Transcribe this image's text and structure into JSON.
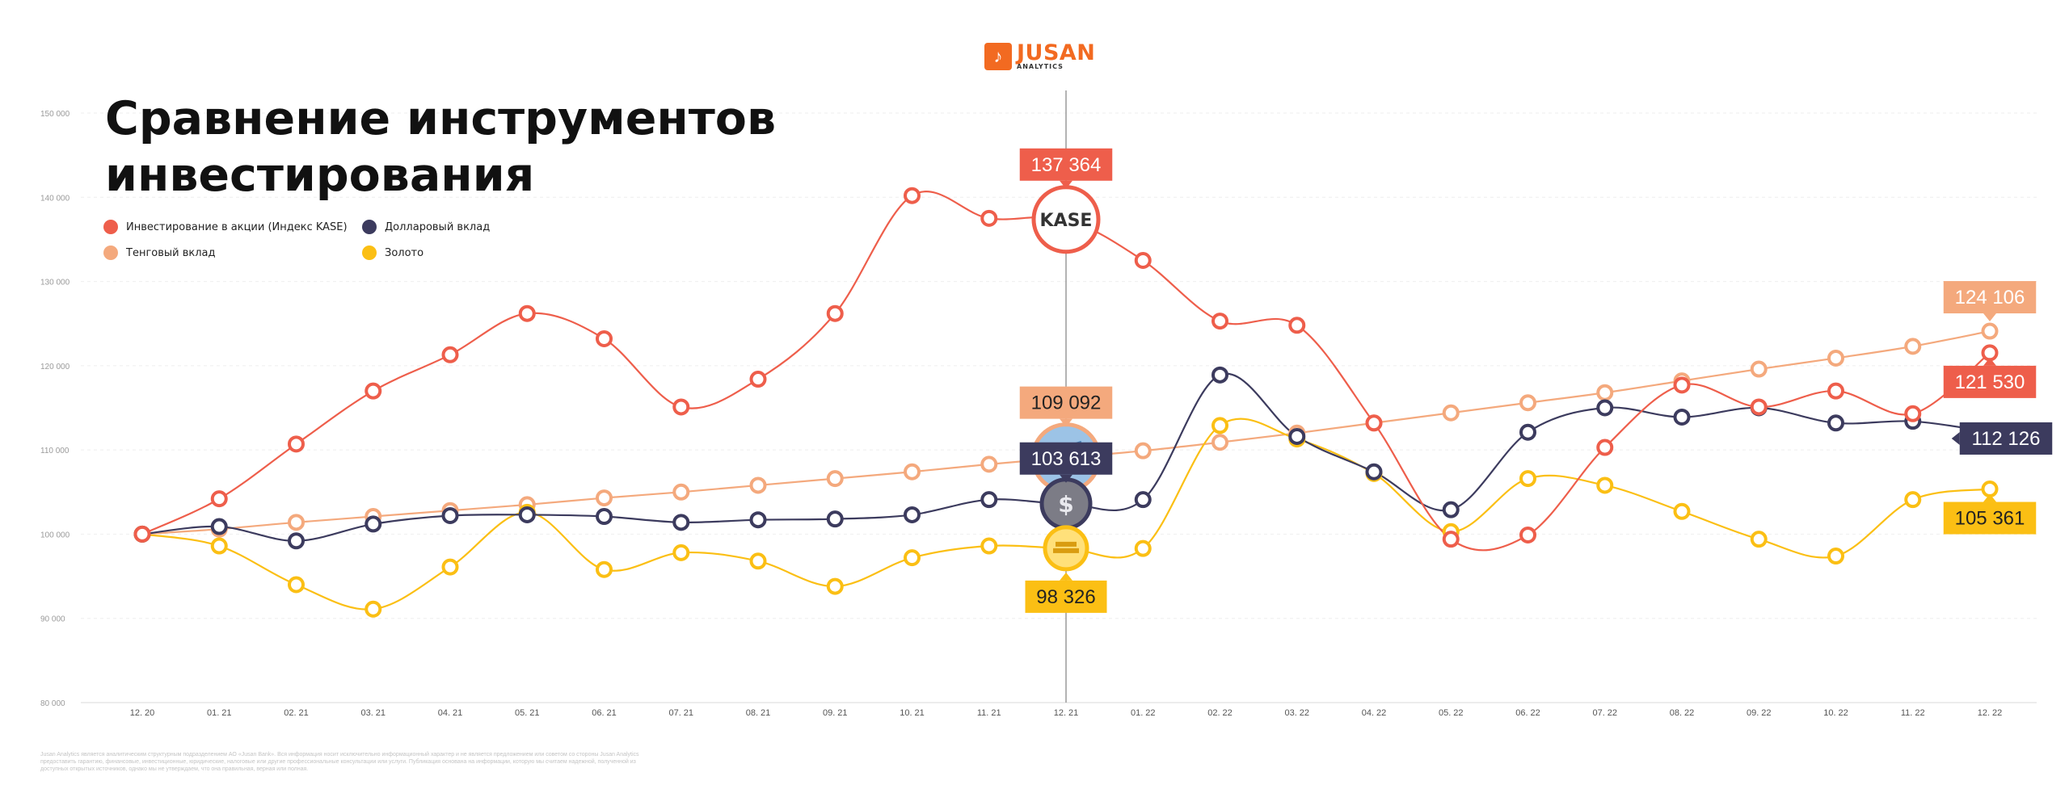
{
  "brand": {
    "name": "JUSAN",
    "sub": "ANALYTICS",
    "color": "#f26a21"
  },
  "title": "Сравнение инструментов\nинвестирования",
  "footnote": "Jusan Analytics является аналитическим структурным подразделением АО «Jusan Bank». Вся информация носит исключительно информационный характер и не является предложением или советом со стороны Jusan Analytics предоставить гарантию, финансовые, инвестиционные, юридические, налоговые или другие профессиональные консультации или услуги. Публикация основана на информации, которую мы считаем надежной, полученной из доступных открытых источников, однако мы не утверждаем, что она правильная, верная или полная.",
  "legend": [
    {
      "label": "Инвестирование в акции (Индекс KASE)",
      "color": "#ee5e4b",
      "series": "kase"
    },
    {
      "label": "Долларовый вклад",
      "color": "#3c3b5e",
      "series": "usd"
    },
    {
      "label": "Тенговый вклад",
      "color": "#f4a97d",
      "series": "kzt"
    },
    {
      "label": "Золото",
      "color": "#fbbf14",
      "series": "gold"
    }
  ],
  "chart_data": {
    "type": "line",
    "categories": [
      "12. 20",
      "01. 21",
      "02. 21",
      "03. 21",
      "04. 21",
      "05. 21",
      "06. 21",
      "07. 21",
      "08. 21",
      "09. 21",
      "10. 21",
      "11. 21",
      "12. 21",
      "01. 22",
      "02. 22",
      "03. 22",
      "04. 22",
      "05. 22",
      "06. 22",
      "07. 22",
      "08. 22",
      "09. 22",
      "10. 22",
      "11. 22",
      "12. 22"
    ],
    "ylim": [
      80000,
      150000
    ],
    "yticks": [
      "80 000",
      "90 000",
      "100 000",
      "110 000",
      "120 000",
      "130 000",
      "140 000",
      "150 000"
    ],
    "grid": true,
    "legend_position": "top-left",
    "highlight_category": "12. 21",
    "series": [
      {
        "id": "kase",
        "color": "#ee5e4b",
        "values": [
          100000,
          104200,
          110700,
          117000,
          121300,
          126200,
          123200,
          115100,
          118400,
          126200,
          140200,
          137500,
          137364,
          132500,
          125300,
          124800,
          113200,
          99400,
          99900,
          110300,
          117700,
          115100,
          117000,
          114300,
          121530
        ]
      },
      {
        "id": "kzt",
        "color": "#f4a97d",
        "values": [
          100000,
          100600,
          101400,
          102100,
          102800,
          103500,
          104300,
          105000,
          105800,
          106600,
          107400,
          108300,
          109092,
          109900,
          110900,
          112000,
          113200,
          114400,
          115600,
          116800,
          118200,
          119600,
          120900,
          122300,
          124106
        ]
      },
      {
        "id": "usd",
        "color": "#3c3b5e",
        "values": [
          100000,
          100900,
          99200,
          101200,
          102200,
          102300,
          102100,
          101400,
          101700,
          101800,
          102300,
          104100,
          103613,
          104100,
          118900,
          111600,
          107400,
          102900,
          112100,
          115000,
          113900,
          115000,
          113200,
          113400,
          112126
        ]
      },
      {
        "id": "gold",
        "color": "#fbbf14",
        "values": [
          100000,
          98600,
          94000,
          91100,
          96100,
          102600,
          95800,
          97800,
          96800,
          93800,
          97200,
          98600,
          98326,
          98300,
          112900,
          111300,
          107200,
          100300,
          106600,
          105800,
          102700,
          99400,
          97400,
          104100,
          105361
        ]
      }
    ],
    "callouts": [
      {
        "series": "kase",
        "label": "137 364",
        "bg": "#ee5e4b",
        "fg": "#ffffff",
        "cat": 12,
        "side": "above"
      },
      {
        "series": "kzt",
        "label": "109 092",
        "bg": "#f4a97d",
        "fg": "#222222",
        "cat": 12,
        "side": "above"
      },
      {
        "series": "usd",
        "label": "103 613",
        "bg": "#3c3b5e",
        "fg": "#ffffff",
        "cat": 12,
        "side": "above"
      },
      {
        "series": "gold",
        "label": "98 326",
        "bg": "#fbbf14",
        "fg": "#222222",
        "cat": 12,
        "side": "below"
      },
      {
        "series": "kzt",
        "label": "124 106",
        "bg": "#f4a97d",
        "fg": "#ffffff",
        "cat": 24,
        "side": "above"
      },
      {
        "series": "kase",
        "label": "121 530",
        "bg": "#ee5e4b",
        "fg": "#ffffff",
        "cat": 24,
        "side": "below"
      },
      {
        "series": "usd",
        "label": "112 126",
        "bg": "#3c3b5e",
        "fg": "#ffffff",
        "cat": 24,
        "side": "right"
      },
      {
        "series": "gold",
        "label": "105 361",
        "bg": "#fbbf14",
        "fg": "#222222",
        "cat": 24,
        "side": "below"
      }
    ],
    "markers": [
      {
        "series": "kase",
        "icon": "kase-logo-icon",
        "text": "KASE"
      },
      {
        "series": "kzt",
        "icon": "banknotes-icon"
      },
      {
        "series": "usd",
        "icon": "dollar-coin-icon"
      },
      {
        "series": "gold",
        "icon": "gold-bars-icon"
      }
    ]
  }
}
